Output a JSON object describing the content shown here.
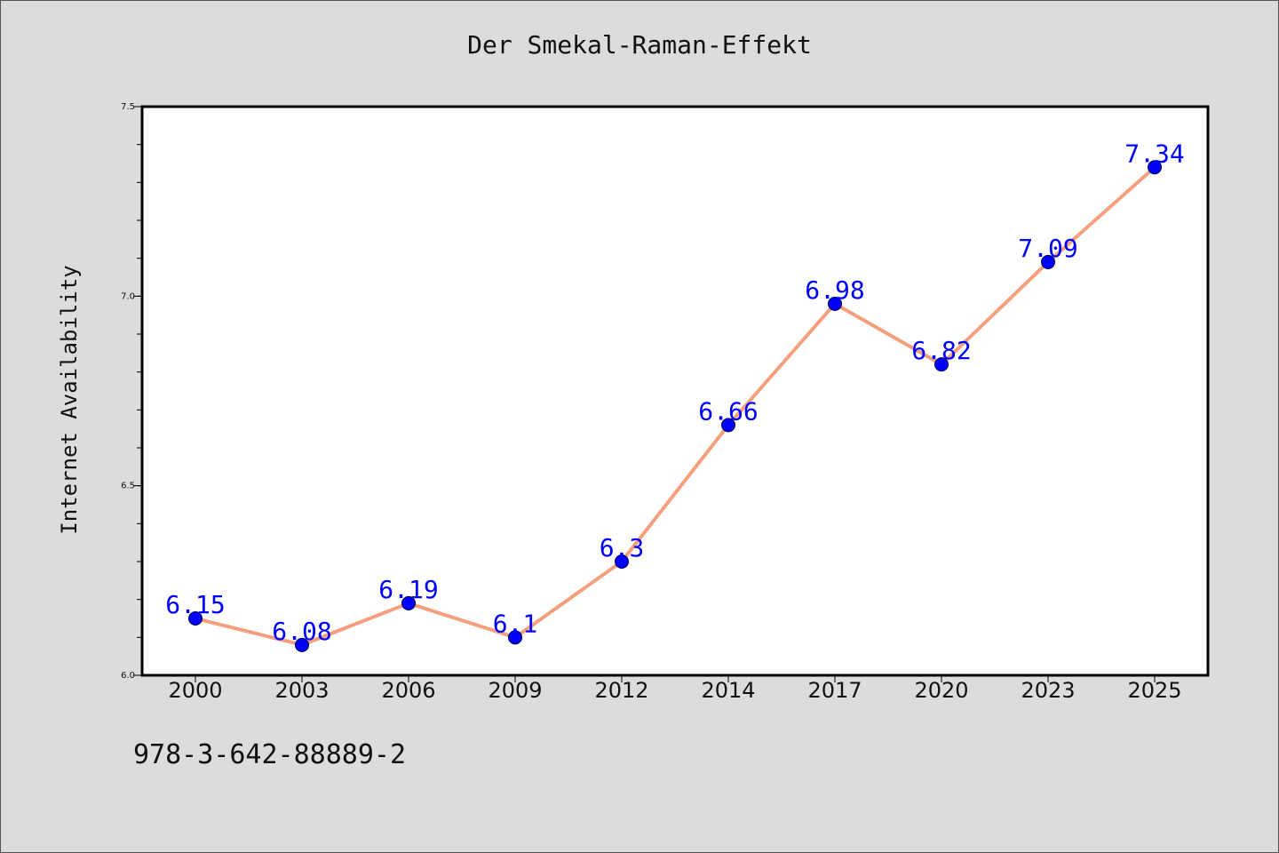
{
  "page": {
    "title": "Der Smekal-Raman-Effekt",
    "footer": "978-3-642-88889-2"
  },
  "colors": {
    "background": "#dcdcdc",
    "plot_area": "#ffffff",
    "line": "#f4a07f",
    "marker": "#0000ff",
    "data_label": "#0000ff"
  },
  "chart_data": {
    "type": "line",
    "title": "Der Smekal-Raman-Effekt",
    "xlabel": "",
    "ylabel": "Internet Availability",
    "categories": [
      "2000",
      "2003",
      "2006",
      "2009",
      "2012",
      "2014",
      "2017",
      "2020",
      "2023",
      "2025"
    ],
    "series": [
      {
        "values": [
          6.15,
          6.08,
          6.19,
          6.1,
          6.3,
          6.66,
          6.98,
          6.82,
          7.09,
          7.34
        ],
        "labels": [
          "6.15",
          "6.08",
          "6.19",
          "6.1",
          "6.3",
          "6.66",
          "6.98",
          "6.82",
          "7.09",
          "7.34"
        ]
      }
    ],
    "ylim": [
      6.0,
      7.5
    ],
    "yticks": [
      "6.0",
      "6.5",
      "7.0",
      "7.5"
    ],
    "grid": false,
    "legend": "none"
  }
}
